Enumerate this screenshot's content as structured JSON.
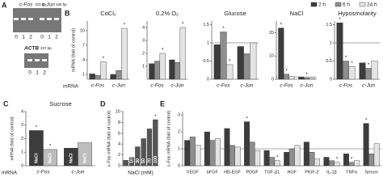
{
  "gel": {
    "panel": "A",
    "top": {
      "bands": [
        {
          "gene": "c-Fos",
          "size": "103 bp"
        },
        {
          "gene": "c-Jun",
          "size": "168 bp"
        }
      ],
      "lanes": [
        "0",
        "1",
        "2",
        "0",
        "1",
        "2"
      ]
    },
    "bottom": {
      "gene": "ACTB",
      "size": "237 bp",
      "lanes": [
        "0",
        "1",
        "2"
      ]
    }
  },
  "legend": [
    {
      "name": "2 h",
      "color": "#3c3c3c"
    },
    {
      "name": "6 h",
      "color": "#8e8e8e"
    },
    {
      "name": "24 h",
      "color": "#e4e4e4"
    }
  ],
  "chart_data": [
    {
      "type": "bar",
      "panel": "B",
      "title": "CoCl₂",
      "ylabel": "mRNA (fold of control)",
      "row_label": "mRNA",
      "categories": [
        "c-Fos",
        "c-Jun"
      ],
      "series": [
        {
          "values": [
            1.1,
            1.0
          ]
        },
        {
          "values": [
            0.8,
            1.8
          ]
        },
        {
          "values": [
            3.6,
            10.5
          ]
        }
      ],
      "ylim": [
        0,
        12
      ],
      "yticks": [
        1,
        4,
        7,
        10
      ],
      "annotations": [
        {
          "text": "*",
          "series": 2,
          "index": 0
        },
        {
          "text": "*",
          "series": 2,
          "index": 1
        }
      ]
    },
    {
      "type": "bar",
      "title": "0.2% O₂",
      "categories": [
        "c-Fos",
        "c-Jun"
      ],
      "series": [
        {
          "values": [
            1.2,
            1.5
          ]
        },
        {
          "values": [
            1.4,
            1.3
          ]
        },
        {
          "values": [
            2.0,
            4.0
          ]
        }
      ],
      "ylim": [
        0,
        4.5
      ],
      "yticks": [
        1,
        2,
        3,
        4
      ],
      "annotations": [
        {
          "text": "*",
          "series": 2,
          "index": 0
        },
        {
          "text": "*",
          "series": 2,
          "index": 1
        }
      ]
    },
    {
      "type": "bar",
      "title": "Glucose",
      "categories": [
        "c-Fos",
        "c-Jun"
      ],
      "series": [
        {
          "values": [
            0.95,
            0.9
          ]
        },
        {
          "values": [
            1.3,
            0.7
          ]
        },
        {
          "values": [
            0.4,
            1.0
          ]
        }
      ],
      "ylim": [
        0,
        1.6
      ],
      "yticks": [
        0,
        0.5,
        1,
        1.5
      ],
      "ref_line": 1,
      "annotations": [
        {
          "text": "*",
          "series": 1,
          "index": 0
        },
        {
          "text": "*",
          "series": 2,
          "index": 0
        }
      ]
    },
    {
      "type": "bar",
      "title": "NaCl",
      "categories": [
        "c-Fos",
        "c-Jun"
      ],
      "series": [
        {
          "values": [
            22,
            0.9
          ]
        },
        {
          "values": [
            2.2,
            0.6
          ]
        },
        {
          "values": [
            1.2,
            0.5
          ]
        }
      ],
      "ylim": [
        0,
        25
      ],
      "yticks": [
        0,
        10,
        20
      ],
      "ref_line": 1,
      "annotations": [
        {
          "text": "*",
          "series": 0,
          "index": 0
        },
        {
          "text": "*",
          "series": 1,
          "index": 0
        },
        {
          "text": "*",
          "series": 1,
          "index": 1
        }
      ]
    },
    {
      "type": "bar",
      "title": "Hyposmolarity",
      "categories": [
        "c-Fos",
        "c-Jun"
      ],
      "series": [
        {
          "values": [
            1.55,
            0.45
          ]
        },
        {
          "values": [
            0.5,
            0.3
          ]
        },
        {
          "values": [
            0.35,
            0.5
          ]
        }
      ],
      "ylim": [
        0,
        1.6
      ],
      "yticks": [
        0,
        0.5,
        1,
        1.5
      ],
      "ref_line": 1,
      "annotations": [
        {
          "text": "*",
          "series": 0,
          "index": 0
        },
        {
          "text": "*",
          "series": 1,
          "index": 0
        },
        {
          "text": "*",
          "series": 2,
          "index": 0
        },
        {
          "text": "*",
          "series": 1,
          "index": 1
        }
      ]
    },
    {
      "type": "bar",
      "panel": "C",
      "title": "Sucrose",
      "ylabel": "mRNA (fold of control)",
      "row_label": "mRNA",
      "categories": [
        "c-Fos",
        "c-Jun"
      ],
      "series": [
        {
          "name": "NaCl",
          "color": "#3c3c3c",
          "values": [
            2.6,
            1.3
          ]
        },
        {
          "name": "NaCl",
          "color": "#bdbdbd",
          "values": [
            1.2,
            1.7
          ]
        }
      ],
      "ylim": [
        0,
        4
      ],
      "yticks": [
        0,
        1,
        2,
        3,
        4
      ],
      "annotations": [
        {
          "text": "*",
          "series": 0,
          "index": 0
        },
        {
          "text": "*",
          "series": 1,
          "index": 0
        }
      ]
    },
    {
      "type": "bar",
      "panel": "D",
      "ylabel": "c-Fos mRNA (fold of control)",
      "xlabel": "NaCl (mM)",
      "labels_in_bars": true,
      "categories": [
        null,
        10,
        30,
        50,
        70,
        100
      ],
      "series": [
        {
          "color": "#555555",
          "values": [
            1.0,
            1.5,
            3.5,
            5.0,
            6.8,
            8.5
          ]
        }
      ],
      "ylim": [
        0,
        10
      ],
      "yticks": [
        0,
        2,
        4,
        6,
        8,
        10
      ],
      "annotations": [
        {
          "text": "*",
          "series": 0,
          "index": 5
        }
      ]
    },
    {
      "type": "bar",
      "panel": "E",
      "ylabel": "c-Fos mRNA (fold of control)",
      "categories": [
        "VEGF",
        "bFGF",
        "HB-EGF",
        "PDGF",
        "TGF-β1",
        "HGF",
        "PlGF-2",
        "IL-1β",
        "TNFα",
        "Serum"
      ],
      "series": [
        {
          "values": [
            1.5,
            2.0,
            2.2,
            2.6,
            0.9,
            0.8,
            1.4,
            0.5,
            0.7,
            2.5
          ]
        },
        {
          "values": [
            1.7,
            1.5,
            1.2,
            1.4,
            0.5,
            1.0,
            0.8,
            0.3,
            0.2,
            0.7
          ]
        },
        {
          "values": [
            1.2,
            1.6,
            1.1,
            0.9,
            0.3,
            1.2,
            0.4,
            0.2,
            0.3,
            1.3
          ]
        }
      ],
      "ylim": [
        0,
        3.2
      ],
      "yticks": [
        0,
        1,
        2,
        3
      ],
      "ref_line": 1,
      "annotations": [
        {
          "text": "*",
          "series": 0,
          "index": 3
        },
        {
          "text": "*",
          "series": 0,
          "index": 9
        },
        {
          "text": "*",
          "series": 2,
          "index": 4
        },
        {
          "text": "*",
          "series": 2,
          "index": 7
        },
        {
          "text": "*",
          "series": 1,
          "index": 8
        }
      ]
    }
  ]
}
